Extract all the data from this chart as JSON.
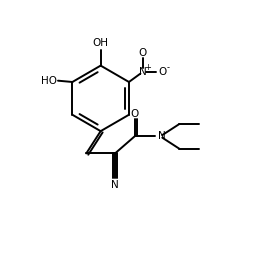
{
  "background_color": "#ffffff",
  "line_color": "#000000",
  "line_width": 1.4,
  "font_size": 7.0,
  "figsize": [
    2.64,
    2.78
  ],
  "dpi": 100,
  "xlim": [
    0,
    10
  ],
  "ylim": [
    0,
    10.5
  ]
}
